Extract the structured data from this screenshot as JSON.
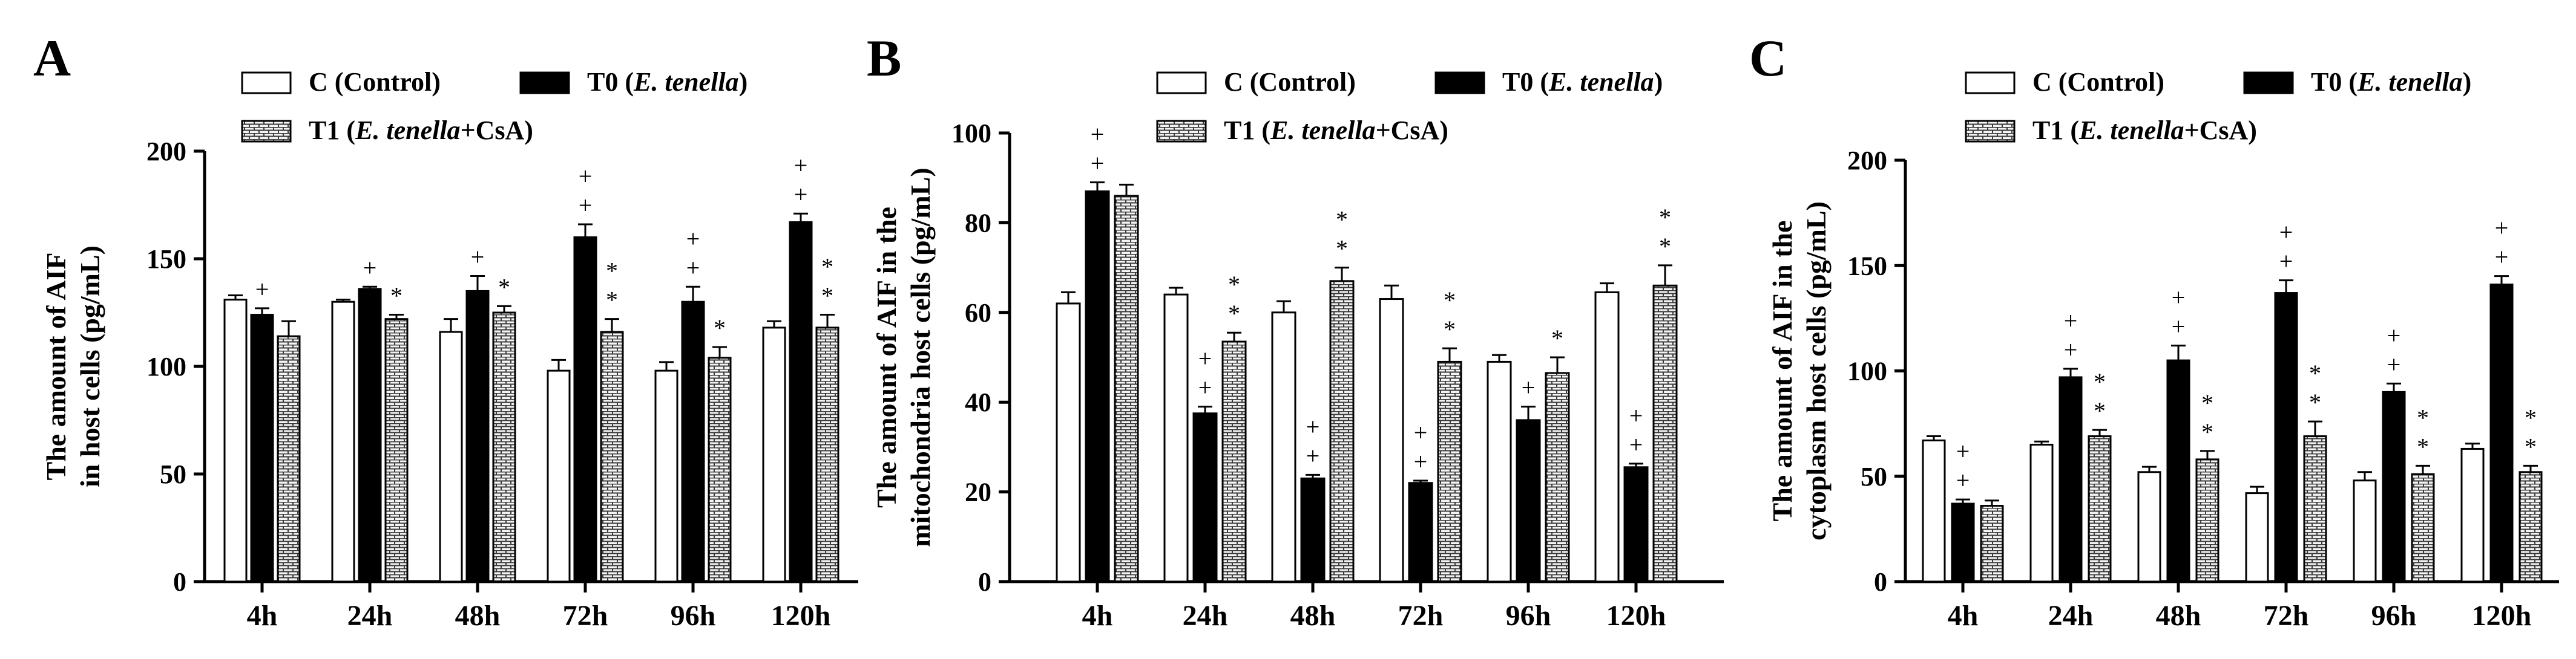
{
  "chart_data": [
    {
      "type": "bar",
      "panel_label": "A",
      "categories": [
        "4h",
        "24h",
        "48h",
        "72h",
        "96h",
        "120h"
      ],
      "ylabel_lines": [
        "The amount of AIF",
        "in host cells (pg/mL)"
      ],
      "ylim": [
        0,
        200
      ],
      "yticks": [
        "0",
        "50",
        "100",
        "150",
        "200"
      ],
      "series": [
        {
          "name": "C (Control)",
          "values": [
            131,
            130,
            116,
            98,
            98,
            118
          ],
          "errors": [
            2,
            1,
            6,
            5,
            4,
            3
          ]
        },
        {
          "name": "T0 (E. tenella)",
          "values": [
            124,
            136,
            135,
            160,
            130,
            167
          ],
          "errors": [
            3,
            1,
            7,
            6,
            7,
            4
          ]
        },
        {
          "name": "T1 (E. tenella+CsA)",
          "values": [
            114,
            122,
            125,
            116,
            104,
            118
          ],
          "errors": [
            7,
            2,
            3,
            6,
            5,
            6
          ]
        }
      ],
      "annotations": [
        {
          "category": "4h",
          "series": 1,
          "text": "+"
        },
        {
          "category": "24h",
          "series": 1,
          "text": "+"
        },
        {
          "category": "24h",
          "series": 2,
          "text": "*"
        },
        {
          "category": "48h",
          "series": 1,
          "text": "+"
        },
        {
          "category": "48h",
          "series": 2,
          "text": "*"
        },
        {
          "category": "72h",
          "series": 1,
          "text": "+\n+"
        },
        {
          "category": "72h",
          "series": 2,
          "text": "*\n*"
        },
        {
          "category": "96h",
          "series": 1,
          "text": "+\n+"
        },
        {
          "category": "96h",
          "series": 2,
          "text": "*"
        },
        {
          "category": "120h",
          "series": 1,
          "text": "+\n+"
        },
        {
          "category": "120h",
          "series": 2,
          "text": "*\n*"
        }
      ]
    },
    {
      "type": "bar",
      "panel_label": "B",
      "categories": [
        "4h",
        "24h",
        "48h",
        "72h",
        "96h",
        "120h"
      ],
      "ylabel_lines": [
        "The amount of AIF in  the",
        "mitochondria host cells (pg/mL)"
      ],
      "ylim": [
        0,
        100
      ],
      "yticks": [
        "0",
        "20",
        "40",
        "60",
        "80",
        "100"
      ],
      "series": [
        {
          "name": "C (Control)",
          "values": [
            62,
            64,
            60,
            63,
            49,
            64.5
          ],
          "errors": [
            2.5,
            1.5,
            2.5,
            3,
            1.5,
            2
          ]
        },
        {
          "name": "T0 (E. tenella)",
          "values": [
            87,
            37.5,
            23,
            22,
            36,
            25.5
          ],
          "errors": [
            2,
            1.5,
            0.8,
            0.5,
            3,
            0.8
          ]
        },
        {
          "name": "T1 (E. tenella+CsA)",
          "values": [
            86,
            53.5,
            67,
            49,
            46.5,
            66
          ],
          "errors": [
            2.5,
            2,
            3,
            3,
            3.5,
            4.5
          ]
        }
      ],
      "annotations": [
        {
          "category": "4h",
          "series": 1,
          "text": "+\n+"
        },
        {
          "category": "24h",
          "series": 1,
          "text": "+\n+"
        },
        {
          "category": "24h",
          "series": 2,
          "text": "*\n*"
        },
        {
          "category": "48h",
          "series": 1,
          "text": "+\n+"
        },
        {
          "category": "48h",
          "series": 2,
          "text": "*\n*"
        },
        {
          "category": "72h",
          "series": 1,
          "text": "+\n+"
        },
        {
          "category": "72h",
          "series": 2,
          "text": "*\n*"
        },
        {
          "category": "96h",
          "series": 1,
          "text": "+"
        },
        {
          "category": "96h",
          "series": 2,
          "text": "*"
        },
        {
          "category": "120h",
          "series": 1,
          "text": "+\n+"
        },
        {
          "category": "120h",
          "series": 2,
          "text": "*\n*"
        }
      ]
    },
    {
      "type": "bar",
      "panel_label": "C",
      "categories": [
        "4h",
        "24h",
        "48h",
        "72h",
        "96h",
        "120h"
      ],
      "ylabel_lines": [
        "The amount of AIF in  the",
        "cytoplasm host cells (pg/mL)"
      ],
      "ylim": [
        0,
        200
      ],
      "yticks": [
        "0",
        "50",
        "100",
        "150",
        "200"
      ],
      "series": [
        {
          "name": "C (Control)",
          "values": [
            67,
            65,
            52,
            42,
            48,
            63
          ],
          "errors": [
            2,
            1.5,
            2.5,
            3,
            4,
            2.5
          ]
        },
        {
          "name": "T0 (E. tenella)",
          "values": [
            37,
            97,
            105,
            137,
            90,
            141
          ],
          "errors": [
            2,
            4,
            7,
            6,
            4,
            4
          ]
        },
        {
          "name": "T1 (E. tenella+CsA)",
          "values": [
            36,
            69,
            58,
            69,
            51,
            52
          ],
          "errors": [
            2.5,
            3,
            4,
            7,
            4,
            3
          ]
        }
      ],
      "annotations": [
        {
          "category": "4h",
          "series": 1,
          "text": "+\n+"
        },
        {
          "category": "24h",
          "series": 1,
          "text": "+\n+"
        },
        {
          "category": "24h",
          "series": 2,
          "text": "*\n*"
        },
        {
          "category": "48h",
          "series": 1,
          "text": "+\n+"
        },
        {
          "category": "48h",
          "series": 2,
          "text": "*\n*"
        },
        {
          "category": "72h",
          "series": 1,
          "text": "+\n+"
        },
        {
          "category": "72h",
          "series": 2,
          "text": "*\n*"
        },
        {
          "category": "96h",
          "series": 1,
          "text": "+\n+"
        },
        {
          "category": "96h",
          "series": 2,
          "text": "*\n*"
        },
        {
          "category": "120h",
          "series": 1,
          "text": "+\n+"
        },
        {
          "category": "120h",
          "series": 2,
          "text": "*\n*"
        }
      ]
    }
  ],
  "legend": {
    "items": [
      {
        "prefix": "C (Control)",
        "italic": "",
        "suffix": ""
      },
      {
        "prefix": "T0 (",
        "italic": "E. tenella",
        "suffix": ")"
      },
      {
        "prefix": "T1 (",
        "italic": "E. tenella",
        "suffix": "+CsA)"
      }
    ]
  }
}
